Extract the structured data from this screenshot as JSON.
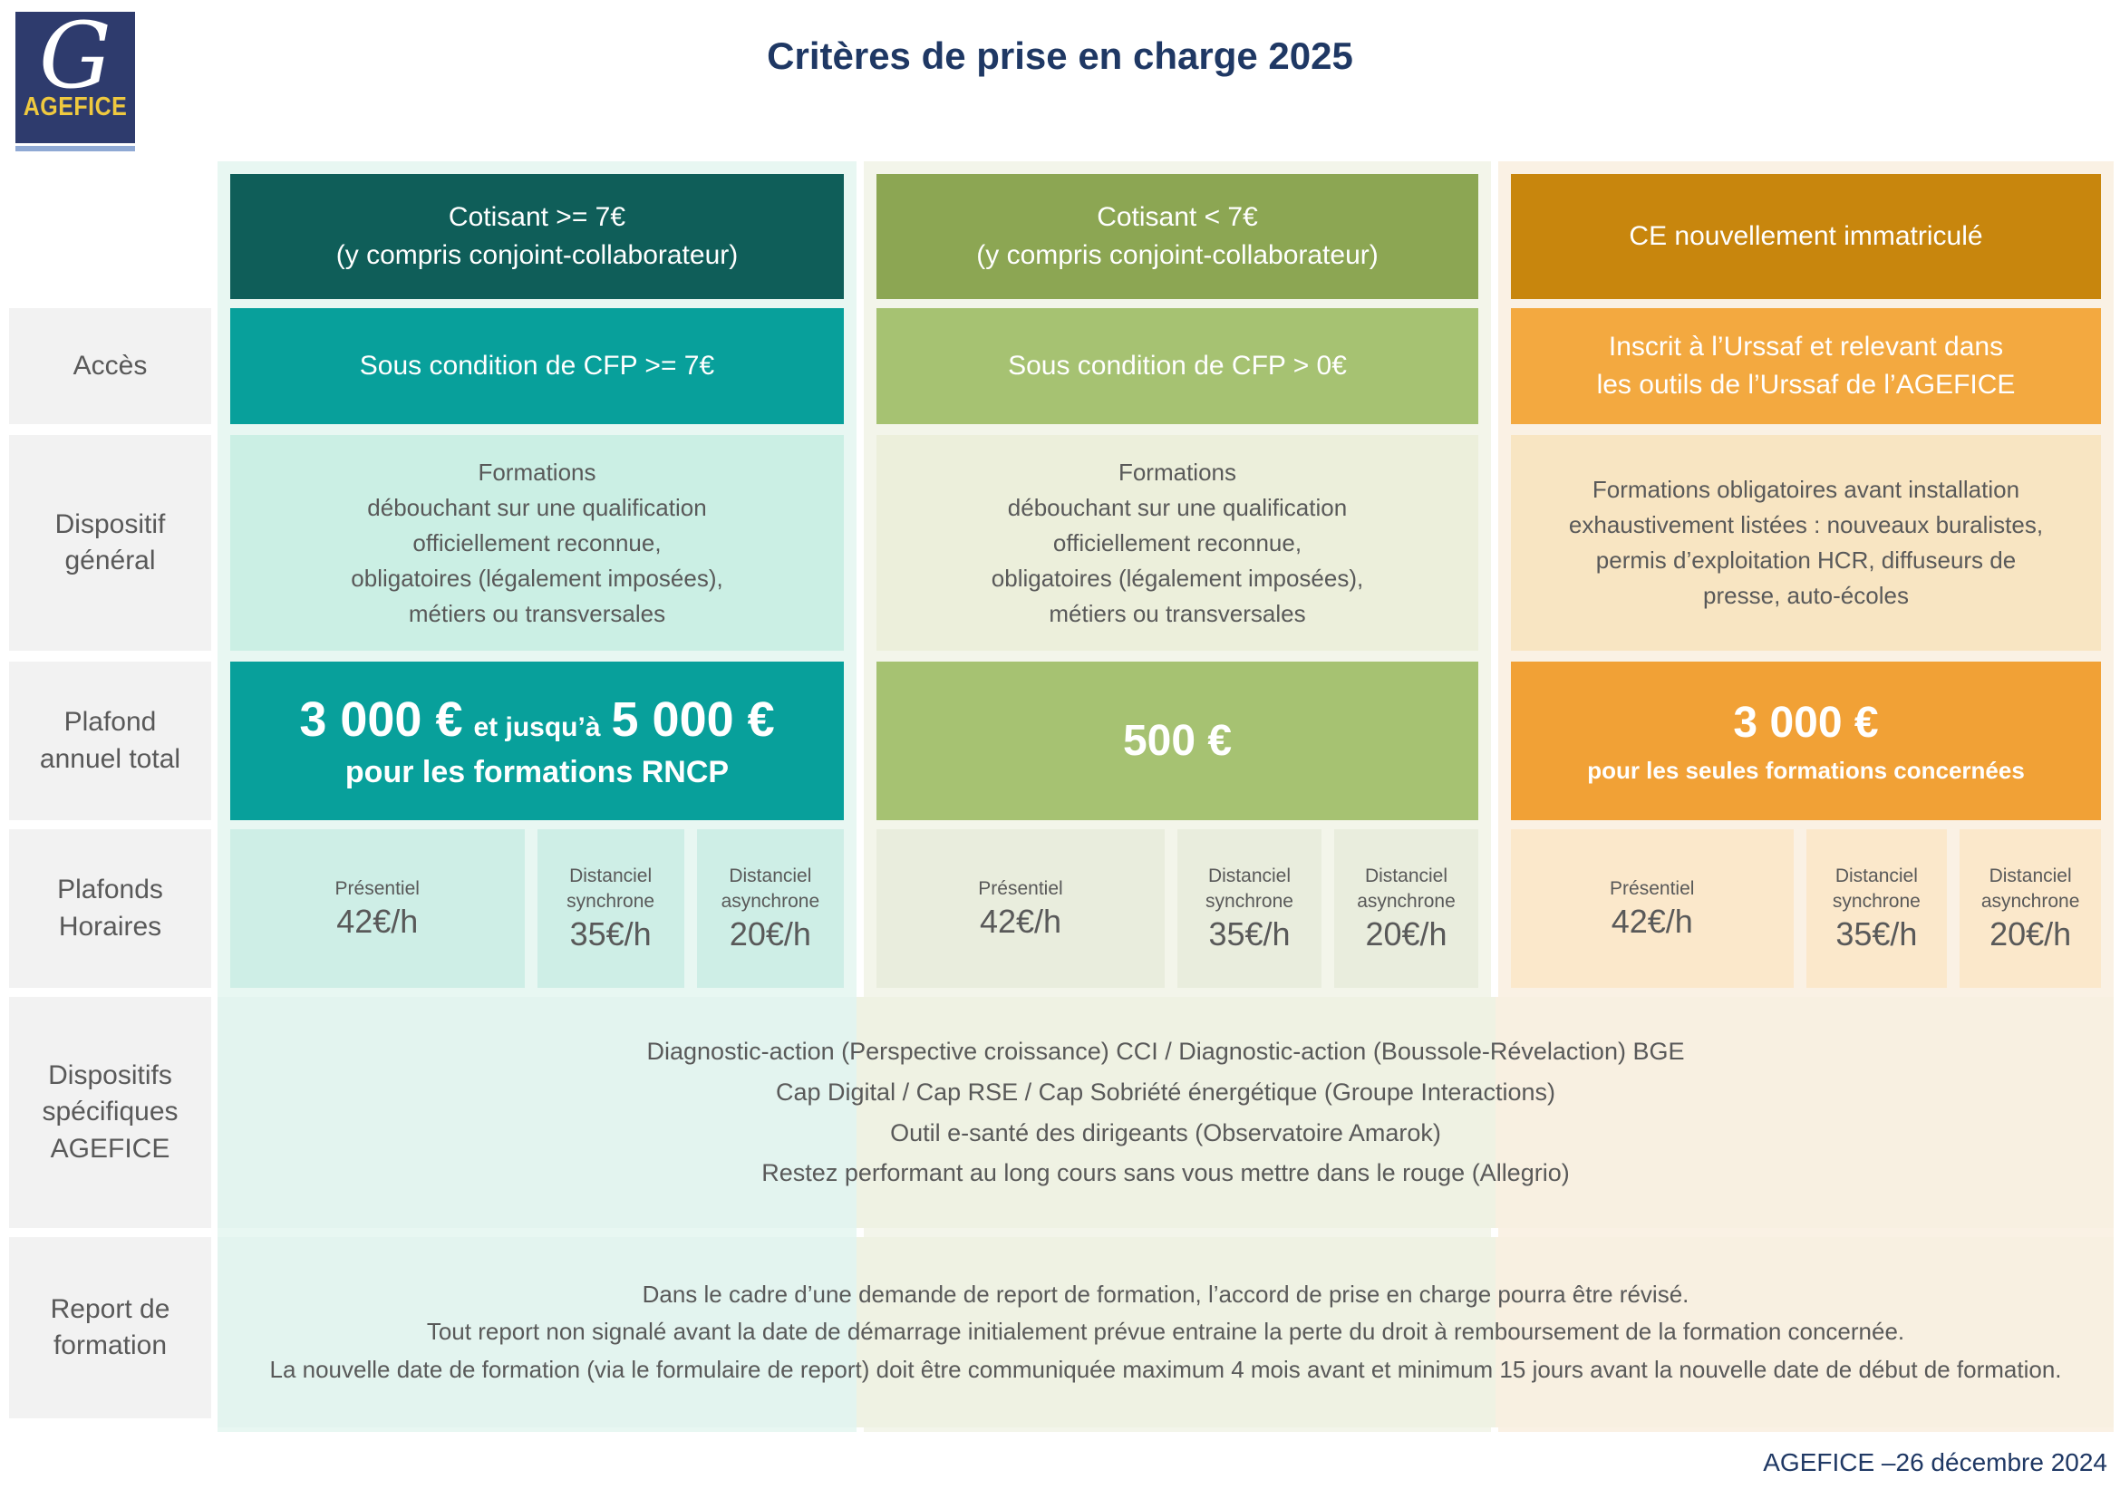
{
  "title": "Critères de prise en charge 2025",
  "footer": "AGEFICE –26 décembre 2024",
  "logo": {
    "g": "G",
    "name": "AGEFICE"
  },
  "colors": {
    "title_navy": "#1F3864",
    "teal_dark": "#0F5E59",
    "teal_mid": "#08A09B",
    "teal_cell": "#CBEFE4",
    "teal_band": "#E8F7F2",
    "olive_dark": "#8CA653",
    "olive_mid": "#A6C272",
    "olive_cell": "#ECEFDB",
    "olive_band": "#F3F5EA",
    "amber_dark": "#C8860D",
    "orange_mid": "#F3A940",
    "orange_plafond": "#F1A136",
    "cream_cell": "#F8E5C2",
    "cream_band": "#FAF1E4",
    "label_bg": "#F2F2F2",
    "text_gray": "#595959",
    "logo_navy": "#2E3B6D",
    "logo_yellow": "#EFC93F",
    "logo_underline": "#8FA9D4"
  },
  "row_labels": {
    "acces": "Accès",
    "dispositif_general": "Dispositif\ngénéral",
    "plafond_annuel": "Plafond\nannuel total",
    "plafonds_horaires": "Plafonds\nHoraires",
    "dispositifs_specifiques": "Dispositifs\nspécifiques\nAGEFICE",
    "report_formation": "Report de\nformation"
  },
  "columns": [
    {
      "header": "Cotisant >= 7€\n(y compris conjoint-collaborateur)",
      "acces": "Sous condition de CFP >= 7€",
      "dispositif": "Formations\ndébouchant sur une qualification\nofficiellement reconnue,\nobligatoires (légalement imposées),\nmétiers ou transversales",
      "plafond": {
        "big1": "3 000 €",
        "mid": "et jusqu’à",
        "big2": "5 000 €",
        "sub": "pour les formations RNCP"
      },
      "horaires": [
        {
          "label": "Présentiel",
          "value": "42€/h"
        },
        {
          "label": "Distanciel\nsynchrone",
          "value": "35€/h"
        },
        {
          "label": "Distanciel\nasynchrone",
          "value": "20€/h"
        }
      ]
    },
    {
      "header": "Cotisant < 7€\n(y compris conjoint-collaborateur)",
      "acces": "Sous condition de CFP > 0€",
      "dispositif": "Formations\ndébouchant sur une qualification\nofficiellement reconnue,\nobligatoires (légalement imposées),\nmétiers ou transversales",
      "plafond": {
        "big1": "500 €"
      },
      "horaires": [
        {
          "label": "Présentiel",
          "value": "42€/h"
        },
        {
          "label": "Distanciel\nsynchrone",
          "value": "35€/h"
        },
        {
          "label": "Distanciel\nasynchrone",
          "value": "20€/h"
        }
      ]
    },
    {
      "header": "CE nouvellement immatriculé",
      "acces": "Inscrit à l’Urssaf et relevant dans\nles outils de l’Urssaf de l’AGEFICE",
      "dispositif": "Formations obligatoires avant installation\nexhaustivement listées : nouveaux buralistes,\npermis d’exploitation HCR, diffuseurs de\npresse, auto-écoles",
      "plafond": {
        "big1": "3 000 €",
        "sub": "pour les seules formations concernées"
      },
      "horaires": [
        {
          "label": "Présentiel",
          "value": "42€/h"
        },
        {
          "label": "Distanciel\nsynchrone",
          "value": "35€/h"
        },
        {
          "label": "Distanciel\nasynchrone",
          "value": "20€/h"
        }
      ]
    }
  ],
  "span_rows": {
    "dispositifs_text": "Diagnostic-action (Perspective croissance) CCI / Diagnostic-action (Boussole-Révelaction) BGE\nCap Digital / Cap RSE / Cap Sobriété énergétique (Groupe Interactions)\nOutil e-santé des dirigeants (Observatoire Amarok)\nRestez performant au long cours sans vous mettre dans le rouge (Allegrio)",
    "report_text": "Dans le cadre d’une demande de report de formation, l’accord de prise en charge pourra être révisé.\nTout report non signalé avant la date de démarrage initialement prévue entraine la perte du droit à remboursement de la formation concernée.\nLa nouvelle date de formation (via le formulaire de report) doit être communiquée maximum 4 mois avant et minimum 15 jours avant la nouvelle date de début de formation."
  }
}
